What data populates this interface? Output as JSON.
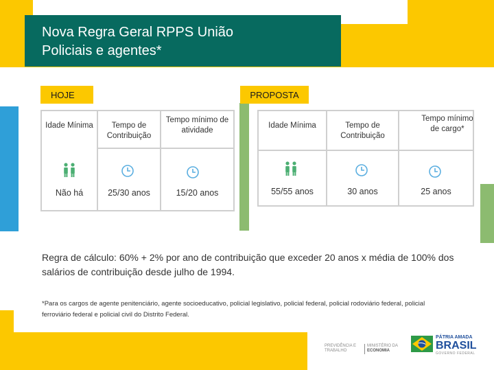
{
  "title": {
    "line1": "Nova Regra Geral RPPS União",
    "line2": "Policiais e agentes*"
  },
  "labels": {
    "today": "HOJE",
    "proposal": "PROPOSTA"
  },
  "today_table": {
    "headers": [
      "Idade Mínima",
      "Tempo de Contribuição",
      "Tempo mínimo de atividade"
    ],
    "values": [
      "Não há",
      "25/30 anos",
      "15/20 anos"
    ]
  },
  "proposal_table": {
    "headers": [
      "Idade Mínima",
      "Tempo de Contribuição",
      "Tempo mínimo de cargo*"
    ],
    "values": [
      "55/55 anos",
      "30 anos",
      "25 anos"
    ]
  },
  "rule": {
    "label": "Regra de cálculo:",
    "text": " 60% + 2% por ano de contribuição que exceder 20 anos x média de 100% dos  salários de contribuição desde julho de 1994."
  },
  "footnote": "*Para os cargos de agente penitenciário, agente socioeducativo, policial legislativo, policial federal, policial rodoviário federal, policial ferroviário federal e policial civil do Distrito Federal.",
  "footer": {
    "org_left_1": "PREVIDÊNCIA E",
    "org_left_2": "TRABALHO",
    "org_right_1": "MINISTÉRIO DA",
    "org_right_2": "ECONOMIA",
    "brand_line1": "PÁTRIA AMADA",
    "brand_line2": "BRASIL",
    "brand_line3": "GOVERNO FEDERAL"
  },
  "colors": {
    "title_bg": "#076a5f",
    "accent_yellow": "#fcc800",
    "blue": "#2f9fd8",
    "green": "#8cbb70"
  },
  "icons": {
    "age": "people-icon",
    "time": "clock-icon",
    "flag": "brazil-flag-icon"
  }
}
